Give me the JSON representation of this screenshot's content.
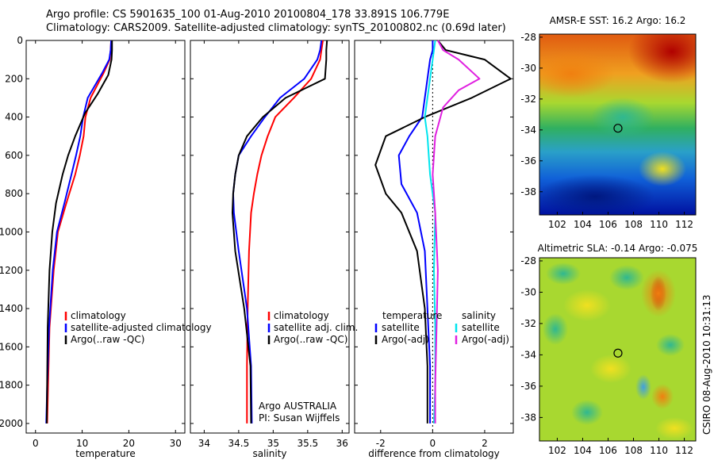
{
  "header": {
    "title_line1": "Argo profile: CS 5901635_100 01-Aug-2010 20100804_178 33.891S 106.779E",
    "title_line2": "Climatology: CARS2009. Satellite-adjusted climatology: synTS_20100802.nc (0.69d later)"
  },
  "side_label": "CSIRO 08-Aug-2010 10:31:13",
  "colors": {
    "red": "#ff0000",
    "blue": "#0000ff",
    "black": "#000000",
    "cyan": "#00e5ee",
    "magenta": "#e020e0"
  },
  "chart_data": [
    {
      "type": "line",
      "xlabel": "temperature",
      "ylim": [
        0,
        2050
      ],
      "y_reversed": true,
      "xlim": [
        -2,
        32
      ],
      "xticks": [
        0,
        10,
        20,
        30
      ],
      "yticks": [
        0,
        200,
        400,
        600,
        800,
        1000,
        1200,
        1400,
        1600,
        1800,
        2000
      ],
      "legend": {
        "position": "bottom-right",
        "entries": [
          {
            "label": "climatology",
            "color": "#ff0000"
          },
          {
            "label": "satellite-adjusted climatology",
            "color": "#0000ff"
          },
          {
            "label": "Argo(..raw -QC)",
            "color": "#000000"
          }
        ]
      },
      "series": [
        {
          "name": "climatology",
          "color": "#ff0000",
          "x": [
            16.2,
            16.1,
            15.9,
            14.6,
            11.8,
            10.7,
            10.3,
            9.5,
            8.5,
            6.6,
            4.8,
            3.9,
            3.0,
            2.7,
            2.5
          ],
          "y": [
            0,
            50,
            100,
            170,
            300,
            400,
            500,
            600,
            700,
            850,
            1000,
            1200,
            1500,
            1800,
            2000
          ]
        },
        {
          "name": "satellite-adjusted climatology",
          "color": "#0000ff",
          "x": [
            16.2,
            16.1,
            15.8,
            14.3,
            11.2,
            10.2,
            9.6,
            8.7,
            7.7,
            6.2,
            4.6,
            3.7,
            2.9,
            2.5,
            2.3
          ],
          "y": [
            0,
            50,
            100,
            170,
            300,
            400,
            500,
            600,
            700,
            850,
            1000,
            1200,
            1500,
            1800,
            2000
          ]
        },
        {
          "name": "Argo(..raw -QC)",
          "color": "#000000",
          "x": [
            16.4,
            16.4,
            16.3,
            15.6,
            13.3,
            10.6,
            8.5,
            7.0,
            5.8,
            4.4,
            3.6,
            3.0,
            2.6,
            2.4
          ],
          "y": [
            0,
            50,
            100,
            180,
            280,
            380,
            500,
            600,
            700,
            850,
            1000,
            1200,
            1500,
            2000
          ]
        }
      ]
    },
    {
      "type": "line",
      "xlabel": "salinity",
      "ylim": [
        0,
        2050
      ],
      "y_reversed": true,
      "xlim": [
        33.8,
        36.1
      ],
      "xticks": [
        34,
        34.5,
        35,
        35.5,
        36
      ],
      "legend": {
        "position": "bottom-right",
        "entries": [
          {
            "label": "climatology",
            "color": "#ff0000"
          },
          {
            "label": "satellite adj. clim.",
            "color": "#0000ff"
          },
          {
            "label": "Argo(..raw -QC)",
            "color": "#000000"
          }
        ]
      },
      "annotations": [
        "Argo AUSTRALIA",
        "PI: Susan Wijffels"
      ],
      "series": [
        {
          "name": "climatology",
          "color": "#ff0000",
          "x": [
            35.72,
            35.7,
            35.68,
            35.55,
            35.3,
            35.03,
            34.92,
            34.83,
            34.77,
            34.72,
            34.68,
            34.65,
            34.63,
            34.62,
            34.62
          ],
          "y": [
            0,
            50,
            100,
            200,
            300,
            400,
            500,
            600,
            700,
            800,
            900,
            1100,
            1400,
            1700,
            2000
          ]
        },
        {
          "name": "satellite adj. clim.",
          "color": "#0000ff",
          "x": [
            35.7,
            35.68,
            35.64,
            35.45,
            35.1,
            34.88,
            34.68,
            34.5,
            34.45,
            34.42,
            34.43,
            34.5,
            34.62,
            34.68,
            34.69
          ],
          "y": [
            0,
            50,
            100,
            200,
            300,
            400,
            500,
            600,
            700,
            800,
            900,
            1100,
            1400,
            1700,
            2000
          ]
        },
        {
          "name": "Argo(..raw -QC)",
          "color": "#000000",
          "x": [
            35.78,
            35.77,
            35.77,
            35.75,
            35.18,
            34.85,
            34.62,
            34.5,
            34.45,
            34.42,
            34.41,
            34.45,
            34.58,
            34.67,
            34.68
          ],
          "y": [
            0,
            50,
            100,
            200,
            300,
            400,
            500,
            600,
            700,
            800,
            900,
            1100,
            1400,
            1700,
            2000
          ]
        }
      ]
    },
    {
      "type": "line",
      "xlabel": "difference from climatology",
      "ylim": [
        0,
        2050
      ],
      "y_reversed": true,
      "xlim": [
        -3,
        3.1
      ],
      "xticks": [
        -2,
        0,
        2
      ],
      "legend": {
        "position": "bottom",
        "entries": [
          {
            "label": "temperature",
            "color": ""
          },
          {
            "label": "satellite",
            "color": "#0000ff"
          },
          {
            "label": "Argo(-adj)",
            "color": "#000000"
          },
          {
            "label": "salinity",
            "color": ""
          },
          {
            "label": "satellite",
            "color": "#00e5ee"
          },
          {
            "label": "Argo(-adj)",
            "color": "#e020e0"
          }
        ]
      },
      "series": [
        {
          "name": "temperature satellite",
          "color": "#0000ff",
          "x": [
            0.0,
            0.0,
            -0.1,
            -0.2,
            -0.3,
            -0.4,
            -0.9,
            -1.3,
            -1.2,
            -0.6,
            -0.3,
            -0.2,
            -0.1,
            -0.1
          ],
          "y": [
            0,
            50,
            100,
            200,
            300,
            400,
            500,
            600,
            750,
            900,
            1100,
            1400,
            1700,
            2000
          ]
        },
        {
          "name": "temperature Argo(-adj)",
          "color": "#000000",
          "x": [
            0.2,
            0.5,
            2.0,
            3.0,
            1.5,
            -0.3,
            -1.8,
            -2.2,
            -1.8,
            -1.2,
            -0.6,
            -0.3,
            -0.2,
            -0.2
          ],
          "y": [
            0,
            50,
            100,
            200,
            300,
            400,
            500,
            650,
            800,
            900,
            1100,
            1400,
            1700,
            2000
          ]
        },
        {
          "name": "salinity satellite",
          "color": "#00e5ee",
          "x": [
            0.1,
            0.05,
            0.0,
            -0.1,
            -0.2,
            -0.3,
            -0.2,
            -0.1,
            0.1,
            0.05,
            0.1,
            0.1,
            0.05
          ],
          "y": [
            0,
            50,
            100,
            200,
            300,
            400,
            500,
            700,
            900,
            1200,
            1500,
            1800,
            2000
          ]
        },
        {
          "name": "salinity Argo(-adj)",
          "color": "#e020e0",
          "x": [
            0.2,
            0.4,
            1.0,
            1.8,
            1.0,
            0.4,
            0.1,
            0.0,
            0.1,
            0.2,
            0.15,
            0.1,
            0.1
          ],
          "y": [
            0,
            50,
            100,
            200,
            260,
            350,
            500,
            700,
            900,
            1200,
            1500,
            1800,
            2000
          ]
        }
      ]
    },
    {
      "type": "heatmap",
      "title": "AMSR-E SST: 16.2 Argo: 16.2",
      "xlim": [
        100.6,
        112.9
      ],
      "ylim": [
        -39.5,
        -27.8
      ],
      "xticks": [
        102,
        104,
        106,
        108,
        110,
        112
      ],
      "yticks": [
        -28,
        -30,
        -32,
        -34,
        -36,
        -38
      ],
      "marker": {
        "x": 106.779,
        "y": -33.891
      }
    },
    {
      "type": "heatmap",
      "title": "Altimetric SLA: -0.14 Argo: -0.075",
      "xlim": [
        100.6,
        112.9
      ],
      "ylim": [
        -39.5,
        -27.8
      ],
      "xticks": [
        102,
        104,
        106,
        108,
        110,
        112
      ],
      "yticks": [
        -28,
        -30,
        -32,
        -34,
        -36,
        -38
      ],
      "marker": {
        "x": 106.779,
        "y": -33.891
      }
    }
  ]
}
